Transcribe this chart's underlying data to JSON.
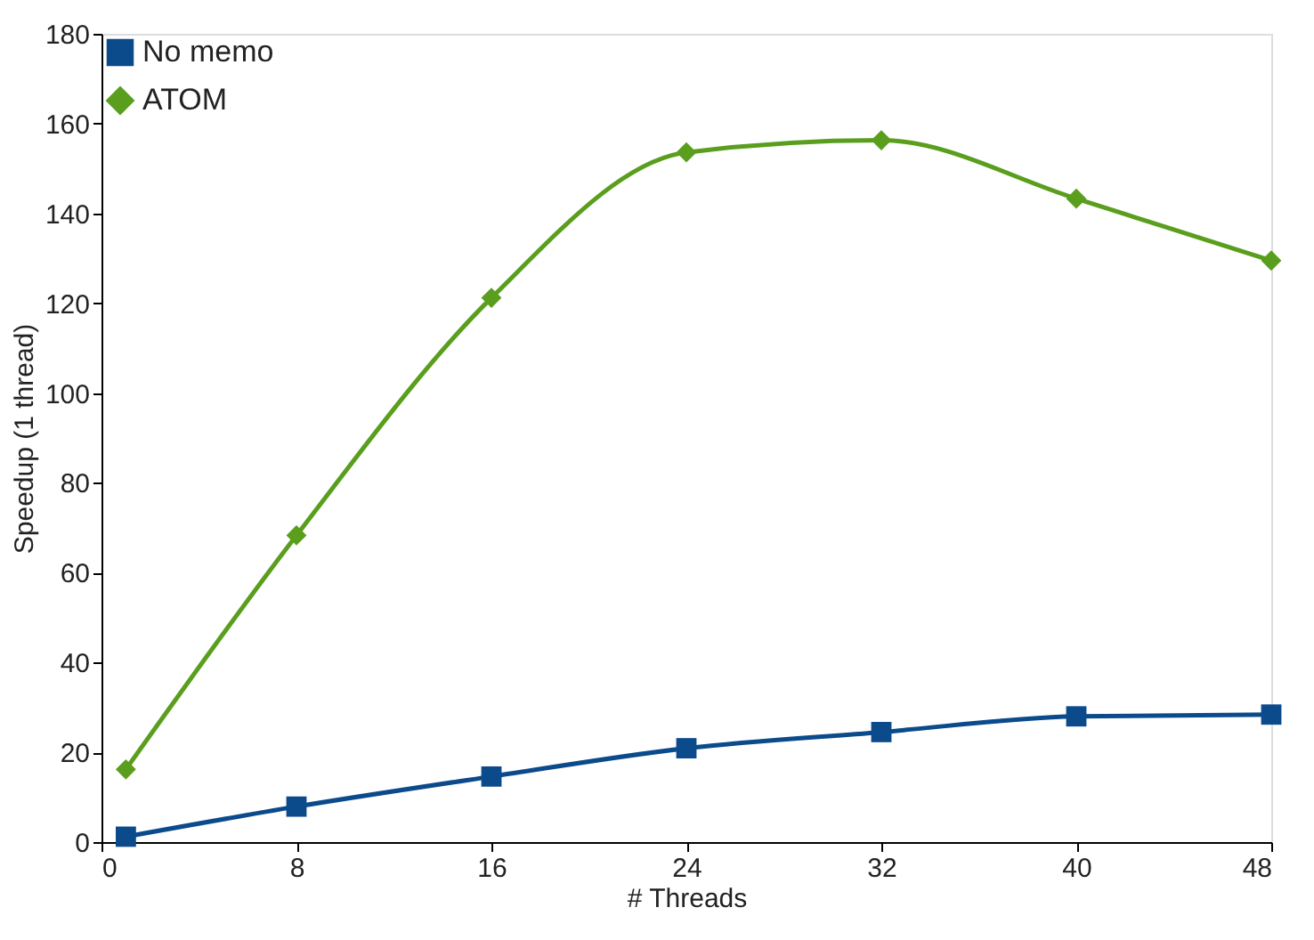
{
  "chart_data": {
    "type": "line",
    "xlabel": "# Threads",
    "ylabel": "Speedup (1 thread)",
    "xlim": [
      0,
      48
    ],
    "xticks": [
      0,
      8,
      16,
      24,
      32,
      40,
      48
    ],
    "ylim": [
      0,
      180
    ],
    "yticks": [
      0,
      20,
      40,
      60,
      80,
      100,
      120,
      140,
      160,
      180
    ],
    "grid": false,
    "legend": "top left",
    "line_style": "solid",
    "series": [
      {
        "name": "No memo",
        "color": "#0b4a8b",
        "marker": "square",
        "x": [
          1,
          8,
          16,
          24,
          32,
          40,
          48
        ],
        "values": [
          1.2,
          7.9,
          14.6,
          20.9,
          24.5,
          28,
          28.4
        ]
      },
      {
        "name": "ATOM",
        "color": "#5a9e1e",
        "marker": "diamond",
        "x": [
          1,
          8,
          16,
          24,
          32,
          40,
          48
        ],
        "values": [
          16.2,
          68.3,
          121.2,
          153.6,
          156.3,
          143.3,
          129.5
        ]
      }
    ]
  }
}
